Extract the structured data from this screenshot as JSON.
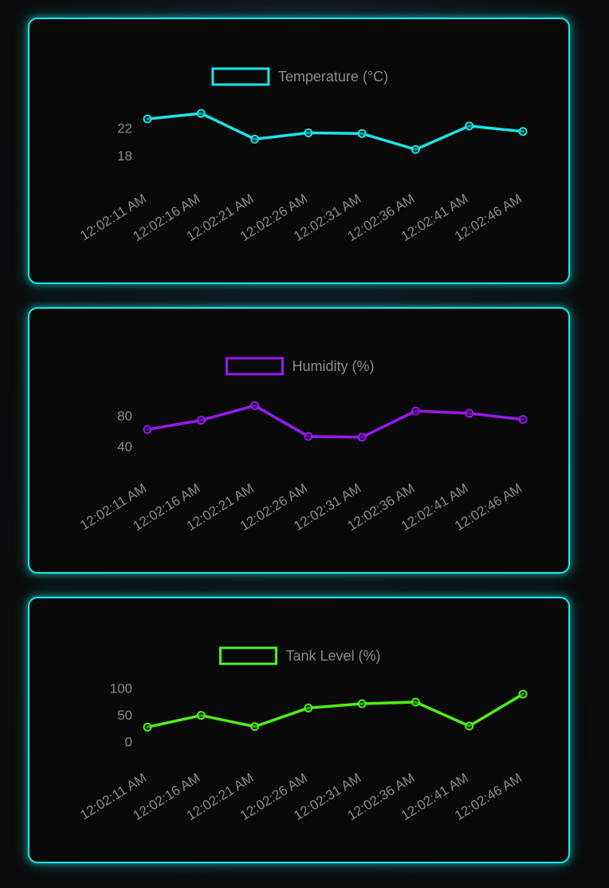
{
  "chart_data": [
    {
      "type": "line",
      "categories": [
        "12:02:11 AM",
        "12:02:16 AM",
        "12:02:21 AM",
        "12:02:26 AM",
        "12:02:31 AM",
        "12:02:36 AM",
        "12:02:41 AM",
        "12:02:46 AM"
      ],
      "series": [
        {
          "name": "Temperature (°C)",
          "values": [
            23.3,
            24.1,
            20.4,
            21.3,
            21.2,
            18.9,
            22.3,
            21.5
          ],
          "color": "#19e6e6"
        }
      ],
      "yticks": [
        18,
        22
      ],
      "ylim": [
        16.3,
        25.5
      ],
      "legend": "top-center",
      "grid": false
    },
    {
      "type": "line",
      "categories": [
        "12:02:11 AM",
        "12:02:16 AM",
        "12:02:21 AM",
        "12:02:26 AM",
        "12:02:31 AM",
        "12:02:36 AM",
        "12:02:41 AM",
        "12:02:46 AM"
      ],
      "series": [
        {
          "name": "Humidity (%)",
          "values": [
            62,
            74,
            93,
            53,
            52,
            86,
            83,
            75
          ],
          "color": "#9a18f2"
        }
      ],
      "yticks": [
        40,
        80
      ],
      "ylim": [
        26,
        109
      ],
      "legend": "top-center",
      "grid": false
    },
    {
      "type": "line",
      "categories": [
        "12:02:11 AM",
        "12:02:16 AM",
        "12:02:21 AM",
        "12:02:26 AM",
        "12:02:31 AM",
        "12:02:36 AM",
        "12:02:41 AM",
        "12:02:46 AM"
      ],
      "series": [
        {
          "name": "Tank Level (%)",
          "values": [
            27,
            49,
            28,
            63,
            71,
            74,
            29,
            89
          ],
          "color": "#4ef01a"
        }
      ],
      "yticks": [
        0,
        50,
        100
      ],
      "ylim": [
        -10,
        110
      ],
      "legend": "top-center",
      "grid": false
    }
  ]
}
